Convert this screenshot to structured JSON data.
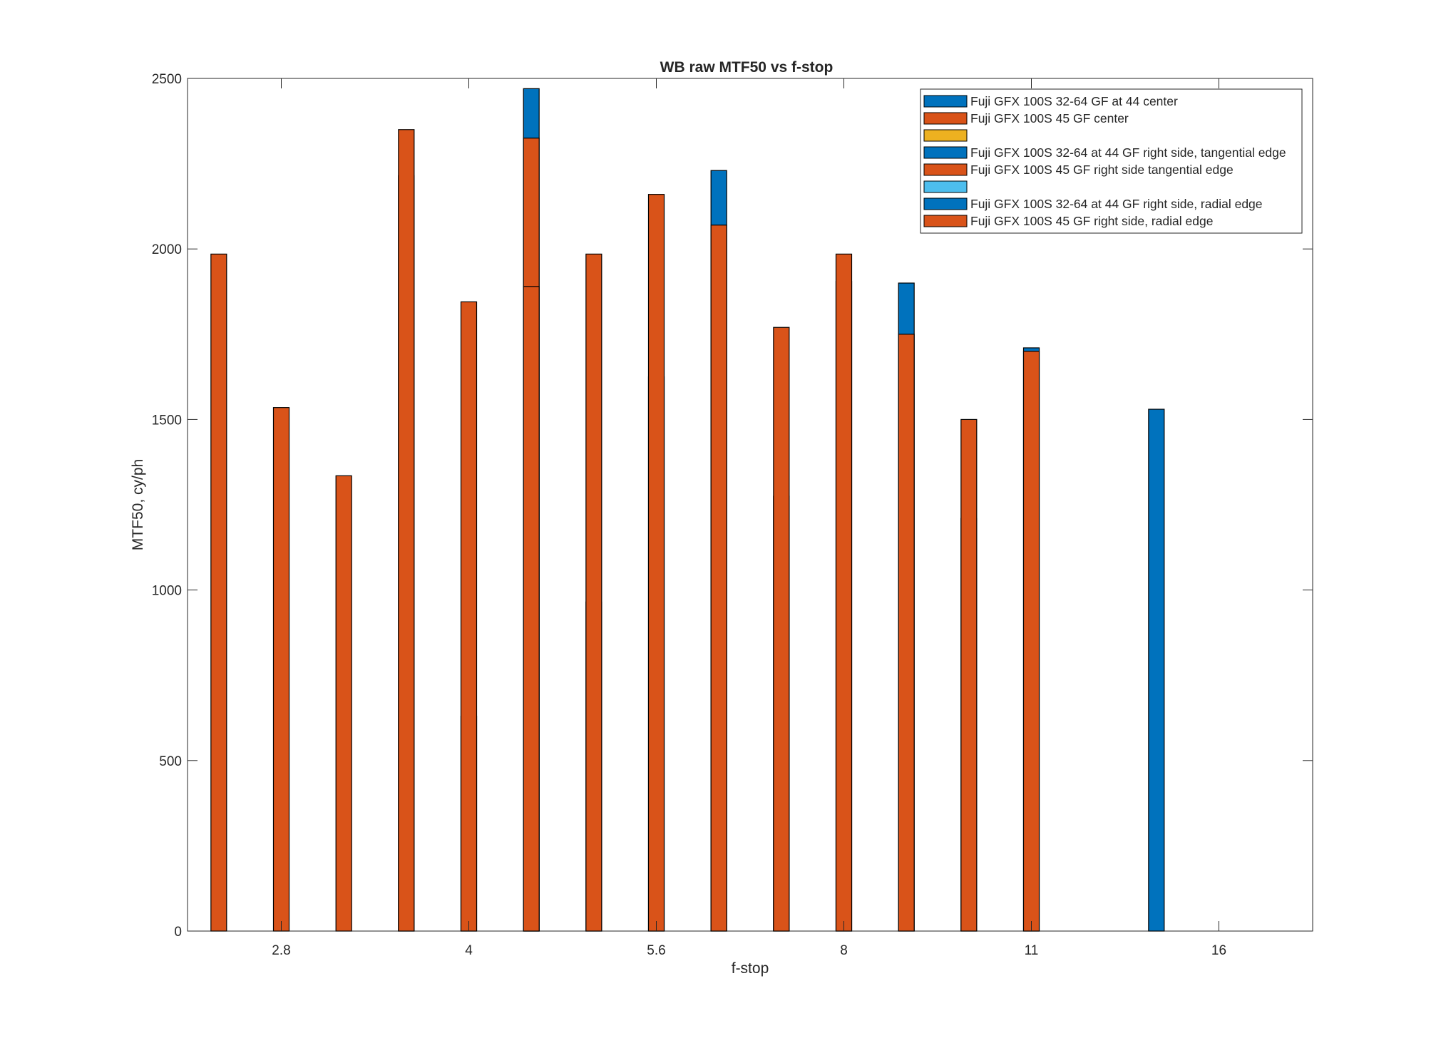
{
  "chart_data": {
    "type": "bar",
    "title": "WB raw MTF50 vs f-stop",
    "xlabel": "f-stop",
    "ylabel": "MTF50, cy/ph",
    "ylim": [
      0,
      2500
    ],
    "xlim": [
      0.5,
      18.5
    ],
    "x_tick_values": [
      2,
      5,
      8,
      11,
      14,
      17
    ],
    "x_tick_labels": [
      "2.8",
      "4",
      "5.6",
      "8",
      "11",
      "16"
    ],
    "y_ticks": [
      0,
      500,
      1000,
      1500,
      2000,
      2500
    ],
    "grid": false,
    "legend_position": "top-right",
    "categories": [
      "1",
      "2",
      "3",
      "4",
      "5",
      "6",
      "7",
      "8",
      "9",
      "10",
      "11",
      "12",
      "13",
      "14",
      "15",
      "16",
      "17",
      "18"
    ],
    "series": [
      {
        "name": "Fuji GFX 100S 32-64 GF at 44 center",
        "color": "#0072BD",
        "values": [
          null,
          null,
          null,
          null,
          null,
          2470,
          null,
          null,
          2230,
          null,
          null,
          1900,
          null,
          null,
          null,
          null,
          null,
          null
        ]
      },
      {
        "name": "Fuji GFX 100S 45 GF center",
        "color": "#D95319",
        "values": [
          1985,
          null,
          null,
          null,
          null,
          2325,
          null,
          null,
          2070,
          null,
          null,
          1750,
          null,
          null,
          null,
          null,
          null,
          null
        ]
      },
      {
        "name": "",
        "color": "#EDB120",
        "values": [
          null,
          null,
          null,
          null,
          null,
          null,
          null,
          null,
          null,
          null,
          null,
          null,
          null,
          null,
          null,
          null,
          null,
          null
        ]
      },
      {
        "name": "Fuji GFX 100S 32-64 at 44 GF right side, tangential edge",
        "color": "#0072BD",
        "values": [
          null,
          null,
          null,
          2215,
          null,
          null,
          965,
          null,
          null,
          1275,
          null,
          null,
          1210,
          null,
          null,
          null,
          null,
          null
        ]
      },
      {
        "name": "Fuji GFX 100S 45 GF right side tangential edge",
        "color": "#D95319",
        "values": [
          null,
          1535,
          null,
          2350,
          null,
          null,
          1985,
          null,
          null,
          1770,
          null,
          null,
          1500,
          null,
          null,
          null,
          null,
          null
        ]
      },
      {
        "name": "",
        "color": "#4DBEEE",
        "values": [
          null,
          null,
          null,
          null,
          null,
          null,
          null,
          null,
          null,
          null,
          null,
          null,
          null,
          null,
          null,
          null,
          null,
          null
        ]
      },
      {
        "name": "Fuji GFX 100S 32-64 at 44 GF right side, radial edge",
        "color": "#0072BD",
        "values": [
          null,
          null,
          null,
          null,
          630,
          null,
          null,
          1625,
          null,
          null,
          1905,
          null,
          null,
          1710,
          null,
          1530,
          null,
          null
        ]
      },
      {
        "name": "Fuji GFX 100S 45 GF right side, radial edge",
        "color": "#D95319",
        "values": [
          null,
          null,
          1335,
          null,
          1845,
          1890,
          null,
          2160,
          null,
          null,
          1985,
          null,
          null,
          1700,
          null,
          null,
          null,
          null
        ]
      }
    ]
  }
}
